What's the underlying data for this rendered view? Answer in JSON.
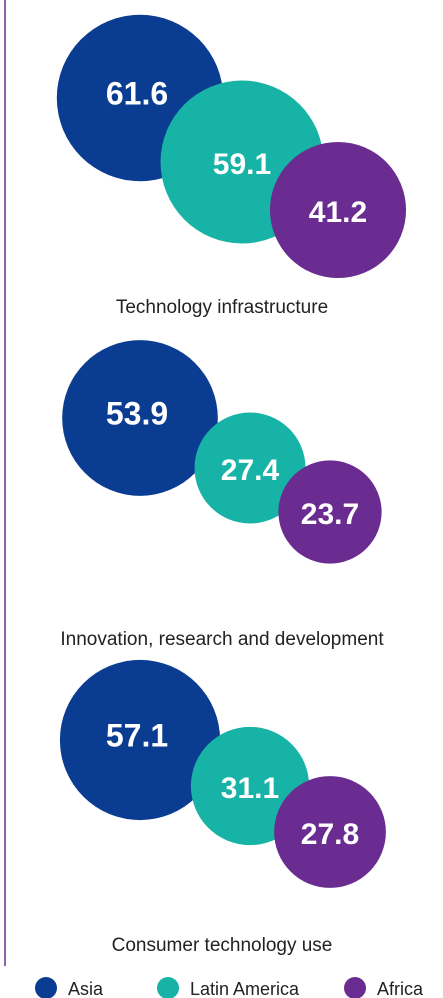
{
  "chart_data": {
    "type": "bubble",
    "categories": [
      "Technology infrastructure",
      "Innovation, research and development",
      "Consumer technology use"
    ],
    "series": [
      {
        "name": "Asia",
        "color": "#0a3d91",
        "values": [
          61.6,
          53.9,
          57.1
        ]
      },
      {
        "name": "Latin America",
        "color": "#17b3a6",
        "values": [
          59.1,
          27.4,
          31.1
        ]
      },
      {
        "name": "Africa",
        "color": "#6a2c91",
        "values": [
          41.2,
          23.7,
          27.8
        ]
      }
    ]
  }
}
